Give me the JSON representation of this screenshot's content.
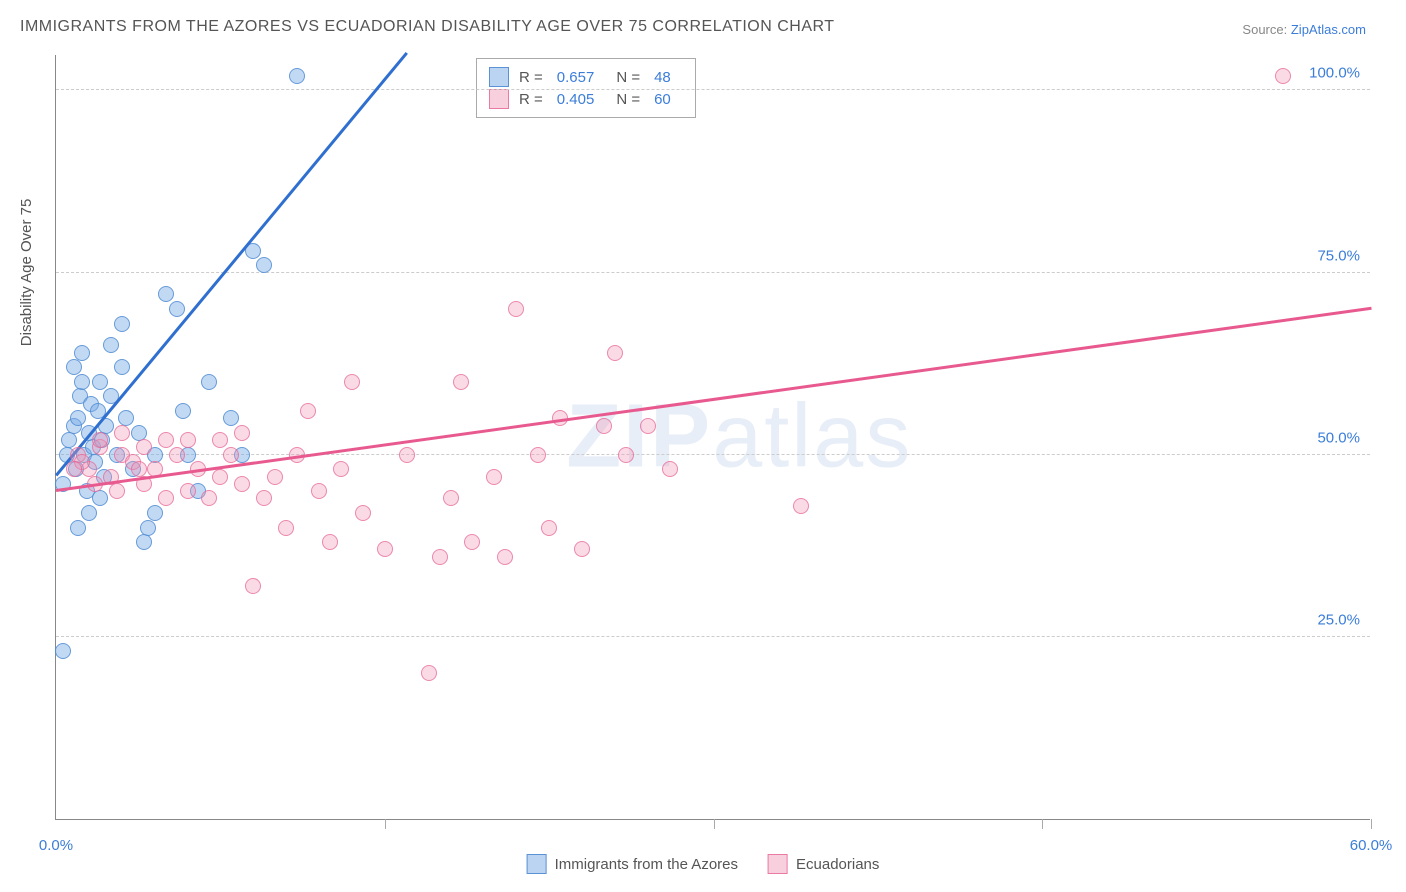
{
  "title": "IMMIGRANTS FROM THE AZORES VS ECUADORIAN DISABILITY AGE OVER 75 CORRELATION CHART",
  "source_label": "Source:",
  "source_name": "ZipAtlas.com",
  "y_axis_label": "Disability Age Over 75",
  "watermark": "ZIPatlas",
  "chart": {
    "type": "scatter",
    "xlim": [
      0,
      60
    ],
    "ylim": [
      0,
      105
    ],
    "x_ticks": [
      0,
      30,
      60
    ],
    "x_tick_labels": [
      "0.0%",
      "",
      "60.0%"
    ],
    "y_ticks": [
      25,
      50,
      75,
      100
    ],
    "y_tick_labels": [
      "25.0%",
      "50.0%",
      "75.0%",
      "100.0%"
    ],
    "background_color": "#ffffff",
    "grid_color": "#cccccc",
    "axis_color": "#888888",
    "text_color": "#555555",
    "value_color": "#3b7dd8",
    "marker_radius": 8,
    "series": [
      {
        "name": "Immigrants from the Azores",
        "color_fill": "rgba(120,170,230,0.45)",
        "color_stroke": "rgba(80,140,210,0.8)",
        "R": "0.657",
        "N": "48",
        "trend": {
          "x1": 0,
          "y1": 47,
          "x2": 16,
          "y2": 105,
          "color": "#2f6fd0"
        },
        "points": [
          [
            0.3,
            46
          ],
          [
            0.5,
            50
          ],
          [
            0.6,
            52
          ],
          [
            0.8,
            54
          ],
          [
            0.9,
            48
          ],
          [
            1.0,
            55
          ],
          [
            1.1,
            58
          ],
          [
            1.2,
            60
          ],
          [
            1.3,
            50
          ],
          [
            1.4,
            45
          ],
          [
            1.5,
            53
          ],
          [
            1.6,
            57
          ],
          [
            1.7,
            51
          ],
          [
            1.8,
            49
          ],
          [
            1.9,
            56
          ],
          [
            2.0,
            60
          ],
          [
            2.1,
            52
          ],
          [
            2.2,
            47
          ],
          [
            2.3,
            54
          ],
          [
            2.5,
            58
          ],
          [
            2.8,
            50
          ],
          [
            3.0,
            62
          ],
          [
            3.2,
            55
          ],
          [
            3.5,
            48
          ],
          [
            3.8,
            53
          ],
          [
            4.0,
            38
          ],
          [
            4.2,
            40
          ],
          [
            4.5,
            42
          ],
          [
            0.3,
            23
          ],
          [
            1.0,
            40
          ],
          [
            1.5,
            42
          ],
          [
            2.0,
            44
          ],
          [
            5.0,
            72
          ],
          [
            5.5,
            70
          ],
          [
            4.5,
            50
          ],
          [
            5.8,
            56
          ],
          [
            6.0,
            50
          ],
          [
            7.0,
            60
          ],
          [
            8.0,
            55
          ],
          [
            8.5,
            50
          ],
          [
            9.0,
            78
          ],
          [
            9.5,
            76
          ],
          [
            11.0,
            102
          ],
          [
            6.5,
            45
          ],
          [
            2.5,
            65
          ],
          [
            3.0,
            68
          ],
          [
            0.8,
            62
          ],
          [
            1.2,
            64
          ]
        ]
      },
      {
        "name": "Ecuadorians",
        "color_fill": "rgba(240,150,180,0.35)",
        "color_stroke": "rgba(230,100,150,0.7)",
        "R": "0.405",
        "N": "60",
        "trend": {
          "x1": 0,
          "y1": 45,
          "x2": 60,
          "y2": 70,
          "color": "#e85a8f"
        },
        "points": [
          [
            1.0,
            50
          ],
          [
            1.5,
            48
          ],
          [
            2.0,
            51
          ],
          [
            2.5,
            47
          ],
          [
            3.0,
            50
          ],
          [
            3.5,
            49
          ],
          [
            4.0,
            46
          ],
          [
            4.5,
            48
          ],
          [
            5.0,
            44
          ],
          [
            5.5,
            50
          ],
          [
            6.0,
            45
          ],
          [
            6.5,
            48
          ],
          [
            7.0,
            44
          ],
          [
            7.5,
            47
          ],
          [
            8.0,
            50
          ],
          [
            8.5,
            46
          ],
          [
            9.0,
            32
          ],
          [
            9.5,
            44
          ],
          [
            10.0,
            47
          ],
          [
            10.5,
            40
          ],
          [
            11.0,
            50
          ],
          [
            11.5,
            56
          ],
          [
            12.0,
            45
          ],
          [
            12.5,
            38
          ],
          [
            13.0,
            48
          ],
          [
            13.5,
            60
          ],
          [
            14.0,
            42
          ],
          [
            15.0,
            37
          ],
          [
            16.0,
            50
          ],
          [
            17.0,
            20
          ],
          [
            17.5,
            36
          ],
          [
            18.0,
            44
          ],
          [
            18.5,
            60
          ],
          [
            19.0,
            38
          ],
          [
            20.0,
            47
          ],
          [
            20.5,
            36
          ],
          [
            21.0,
            70
          ],
          [
            22.0,
            50
          ],
          [
            22.5,
            40
          ],
          [
            23.0,
            55
          ],
          [
            24.0,
            37
          ],
          [
            25.0,
            54
          ],
          [
            25.5,
            64
          ],
          [
            26.0,
            50
          ],
          [
            27.0,
            54
          ],
          [
            28.0,
            48
          ],
          [
            34.0,
            43
          ],
          [
            56.0,
            102
          ],
          [
            2.0,
            52
          ],
          [
            3.0,
            53
          ],
          [
            4.0,
            51
          ],
          [
            5.0,
            52
          ],
          [
            6.0,
            52
          ],
          [
            7.5,
            52
          ],
          [
            8.5,
            53
          ],
          [
            1.8,
            46
          ],
          [
            2.8,
            45
          ],
          [
            3.8,
            48
          ],
          [
            1.2,
            49
          ],
          [
            0.8,
            48
          ]
        ]
      }
    ]
  },
  "bottom_legend": [
    {
      "label": "Immigrants from the Azores",
      "swatch": "a"
    },
    {
      "label": "Ecuadorians",
      "swatch": "b"
    }
  ]
}
